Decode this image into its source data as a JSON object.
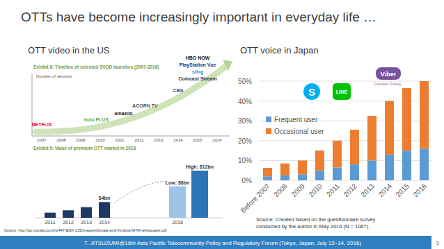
{
  "slide": {
    "title": "OTTs have become increasingly important in everyday life …",
    "footer": "T. JITSUZUMI@16th Asia Pacific Telecommunity Policy and Regulatory Forum (Tokyo, Japan, July 12–14, 2016)",
    "page": "5"
  },
  "left_panel": {
    "heading": "OTT video in the US",
    "source": "Source: http://go.ooyala.com/rs/447-EQK-225/images/Ooyala-and-Vindicia-MTM-whitepaper.pdf",
    "timeline": {
      "title": "Exhibit 8: Timeline of selected SVOD launches (2007-2016)",
      "axis_label": "Number of services",
      "years": [
        2007,
        2008,
        2009,
        2010,
        2011,
        2012,
        2013,
        2014,
        2015,
        2016
      ],
      "logos": [
        {
          "label": "NETFLIX",
          "x": 2007,
          "color": "#e50914"
        },
        {
          "label": "hulu PLUS",
          "x": 2009.8,
          "color": "#66aa33"
        },
        {
          "label": "amazon",
          "x": 2011.2,
          "color": "#222222"
        },
        {
          "label": "ACORN TV",
          "x": 2012.3,
          "color": "#555555"
        },
        {
          "label": "CBS",
          "x": 2014,
          "color": "#1a4f9c"
        },
        {
          "label": "Comcast Stream",
          "x": 2015,
          "color": "#333333"
        },
        {
          "label": "sling",
          "x": 2015,
          "color": "#1b9ad6"
        },
        {
          "label": "PlayStation Vue",
          "x": 2015,
          "color": "#003791"
        },
        {
          "label": "HBO NOW",
          "x": 2015,
          "color": "#111111"
        }
      ]
    }
  },
  "right_panel": {
    "heading": "OTT voice in Japan",
    "source": [
      "Source: Created based on the questionnaire survey",
      "conducted by the author in May 2016 (N = 1067)."
    ],
    "icons": [
      {
        "label": "S",
        "color": "#00aff0"
      },
      {
        "label": "LINE",
        "color": "#00c300"
      },
      {
        "label": "Viber",
        "color": "#7b519d"
      }
    ],
    "icon_note": "Connect. Freely"
  },
  "chart_data": [
    {
      "type": "bar",
      "stacked": true,
      "grid": true,
      "legend": "upper left",
      "categories": [
        "Before 2007",
        "2008",
        "2009",
        "2010",
        "2011",
        "2012",
        "2013",
        "2014",
        "2015",
        "2016"
      ],
      "series": [
        {
          "name": "Frequent user",
          "color": "#5b9bd5",
          "values": [
            2,
            2.5,
            3,
            5,
            6.5,
            8,
            10,
            13,
            15,
            16
          ]
        },
        {
          "name": "Occasional user",
          "color": "#ed7d31",
          "values": [
            4.3,
            6,
            7,
            10,
            13.5,
            17.5,
            22.5,
            27,
            31.5,
            34
          ]
        }
      ],
      "ylim": [
        0,
        50
      ],
      "yticks": [
        {
          "value": 0,
          "label": "0%"
        },
        {
          "value": 10,
          "label": "10%"
        },
        {
          "value": 20,
          "label": "20%"
        },
        {
          "value": 30,
          "label": "30%"
        },
        {
          "value": 40,
          "label": "40%"
        },
        {
          "value": 50,
          "label": "50%"
        }
      ]
    },
    {
      "type": "bar",
      "title": "Exhibit 9: Value of premium OTT market in 2018",
      "categories": [
        "2011",
        "2012",
        "2013",
        "2014",
        "2018",
        null
      ],
      "values": [
        1.3,
        1.9,
        2.7,
        4,
        8,
        12
      ],
      "value_labels": [
        null,
        null,
        null,
        "$4bn",
        "Low: $8bn",
        "High: $12bn"
      ],
      "colors": [
        "#1f3864",
        "#1f3864",
        "#1f3864",
        "#1f3864",
        "#9dc3e6",
        "#2e75b6"
      ],
      "data_labels": true,
      "tick_labels": "x",
      "ylim": [
        0,
        12
      ]
    }
  ]
}
